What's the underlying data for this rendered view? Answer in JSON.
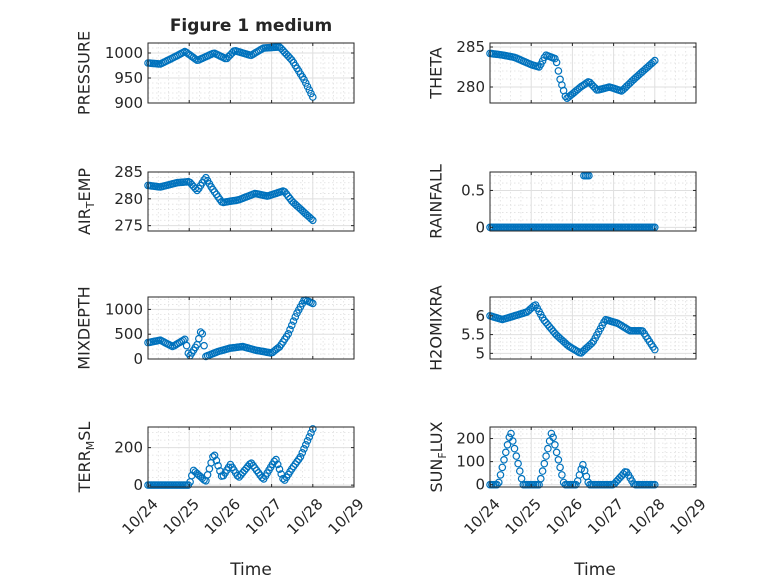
{
  "figure": {
    "title": "Figure 1 medium"
  },
  "style": {
    "marker_color": "#0072bd",
    "axis_color": "#262626",
    "grid_color": "#dfdfdf",
    "background": "#ffffff"
  },
  "chart_data": [
    {
      "type": "scatter",
      "ylabel": "PRESSURE",
      "ylim": [
        900,
        1020
      ],
      "yticks": [
        900,
        950,
        1000
      ],
      "ytick_labels": [
        "900",
        "950",
        "1000"
      ],
      "xticks": [
        "10/24",
        "10/25",
        "10/26",
        "10/27",
        "10/28",
        "10/29"
      ],
      "x_show_labels": false,
      "curve": [
        [
          0.0,
          980
        ],
        [
          0.3,
          978
        ],
        [
          0.5,
          986
        ],
        [
          0.9,
          1003
        ],
        [
          1.2,
          985
        ],
        [
          1.6,
          1000
        ],
        [
          1.9,
          988
        ],
        [
          2.1,
          1005
        ],
        [
          2.5,
          995
        ],
        [
          2.8,
          1010
        ],
        [
          3.2,
          1012
        ],
        [
          3.5,
          985
        ],
        [
          3.8,
          945
        ],
        [
          4.0,
          912
        ]
      ]
    },
    {
      "type": "scatter",
      "ylabel": "THETA",
      "ylim": [
        278,
        285.5
      ],
      "yticks": [
        280,
        285
      ],
      "ytick_labels": [
        "280",
        "285"
      ],
      "xticks": [
        "10/24",
        "10/25",
        "10/26",
        "10/27",
        "10/28",
        "10/29"
      ],
      "x_show_labels": false,
      "curve": [
        [
          0.0,
          284.2
        ],
        [
          0.3,
          284.0
        ],
        [
          0.6,
          283.7
        ],
        [
          1.0,
          282.8
        ],
        [
          1.2,
          282.5
        ],
        [
          1.35,
          284.0
        ],
        [
          1.6,
          283.5
        ],
        [
          1.7,
          281.0
        ],
        [
          1.85,
          278.5
        ],
        [
          2.2,
          280.0
        ],
        [
          2.4,
          280.7
        ],
        [
          2.6,
          279.6
        ],
        [
          2.9,
          280.0
        ],
        [
          3.2,
          279.5
        ],
        [
          3.5,
          281.0
        ],
        [
          4.0,
          283.3
        ]
      ]
    },
    {
      "type": "scatter",
      "ylabel": "AIR_TEMP",
      "ylim": [
        274,
        285
      ],
      "yticks": [
        275,
        280,
        285
      ],
      "ytick_labels": [
        "275",
        "280",
        "285"
      ],
      "xticks": [
        "10/24",
        "10/25",
        "10/26",
        "10/27",
        "10/28",
        "10/29"
      ],
      "x_show_labels": false,
      "curve": [
        [
          0.0,
          282.5
        ],
        [
          0.3,
          282.2
        ],
        [
          0.7,
          283.0
        ],
        [
          1.0,
          283.2
        ],
        [
          1.2,
          281.5
        ],
        [
          1.4,
          284.0
        ],
        [
          1.55,
          282.0
        ],
        [
          1.8,
          279.3
        ],
        [
          2.2,
          279.8
        ],
        [
          2.6,
          281.0
        ],
        [
          2.9,
          280.5
        ],
        [
          3.3,
          281.5
        ],
        [
          3.5,
          279.5
        ],
        [
          4.0,
          276.0
        ]
      ]
    },
    {
      "type": "scatter",
      "ylabel": "RAINFALL",
      "ylim": [
        -0.05,
        0.75
      ],
      "yticks": [
        0,
        0.5
      ],
      "ytick_labels": [
        "0",
        "0.5"
      ],
      "xticks": [
        "10/24",
        "10/25",
        "10/26",
        "10/27",
        "10/28",
        "10/29"
      ],
      "x_show_labels": false,
      "curve": [
        [
          0.0,
          0
        ],
        [
          4.0,
          0
        ]
      ],
      "extra_points": [
        [
          2.28,
          0.7
        ],
        [
          2.32,
          0.7
        ],
        [
          2.36,
          0.7
        ],
        [
          2.4,
          0.7
        ]
      ]
    },
    {
      "type": "scatter",
      "ylabel": "MIXDEPTH",
      "ylim": [
        0,
        1250
      ],
      "yticks": [
        0,
        500,
        1000
      ],
      "ytick_labels": [
        "0",
        "500",
        "1000"
      ],
      "xticks": [
        "10/24",
        "10/25",
        "10/26",
        "10/27",
        "10/28",
        "10/29"
      ],
      "x_show_labels": false,
      "curve": [
        [
          0.0,
          330
        ],
        [
          0.3,
          380
        ],
        [
          0.6,
          250
        ],
        [
          0.9,
          400
        ],
        [
          1.0,
          40
        ],
        [
          1.2,
          300
        ],
        [
          1.3,
          620
        ],
        [
          1.4,
          50
        ],
        [
          1.7,
          150
        ],
        [
          2.0,
          220
        ],
        [
          2.3,
          250
        ],
        [
          2.6,
          180
        ],
        [
          3.0,
          120
        ],
        [
          3.2,
          250
        ],
        [
          3.4,
          500
        ],
        [
          3.6,
          900
        ],
        [
          3.8,
          1200
        ],
        [
          4.0,
          1120
        ]
      ]
    },
    {
      "type": "scatter",
      "ylabel": "H2OMIXRA",
      "ylim": [
        4.85,
        6.5
      ],
      "yticks": [
        5,
        5.5,
        6
      ],
      "ytick_labels": [
        "5",
        "5.5",
        "6"
      ],
      "xticks": [
        "10/24",
        "10/25",
        "10/26",
        "10/27",
        "10/28",
        "10/29"
      ],
      "x_show_labels": false,
      "curve": [
        [
          0.0,
          6.0
        ],
        [
          0.3,
          5.9
        ],
        [
          0.6,
          6.0
        ],
        [
          0.9,
          6.1
        ],
        [
          1.1,
          6.3
        ],
        [
          1.3,
          5.9
        ],
        [
          1.6,
          5.5
        ],
        [
          1.9,
          5.2
        ],
        [
          2.2,
          5.0
        ],
        [
          2.5,
          5.3
        ],
        [
          2.8,
          5.9
        ],
        [
          3.1,
          5.8
        ],
        [
          3.4,
          5.6
        ],
        [
          3.7,
          5.6
        ],
        [
          4.0,
          5.1
        ]
      ]
    },
    {
      "type": "scatter",
      "ylabel": "TERR_MSL",
      "ylim": [
        -10,
        310
      ],
      "yticks": [
        0,
        200
      ],
      "ytick_labels": [
        "0",
        "200"
      ],
      "xticks": [
        "10/24",
        "10/25",
        "10/26",
        "10/27",
        "10/28",
        "10/29"
      ],
      "x_show_labels": true,
      "curve": [
        [
          0.0,
          0
        ],
        [
          0.5,
          0
        ],
        [
          1.0,
          0
        ],
        [
          1.1,
          80
        ],
        [
          1.4,
          20
        ],
        [
          1.6,
          170
        ],
        [
          1.8,
          40
        ],
        [
          2.0,
          110
        ],
        [
          2.2,
          40
        ],
        [
          2.5,
          120
        ],
        [
          2.8,
          30
        ],
        [
          3.1,
          140
        ],
        [
          3.3,
          20
        ],
        [
          3.5,
          90
        ],
        [
          3.7,
          150
        ],
        [
          4.0,
          300
        ]
      ]
    },
    {
      "type": "scatter",
      "ylabel": "SUN_FLUX",
      "ylim": [
        -10,
        250
      ],
      "yticks": [
        0,
        100,
        200
      ],
      "ytick_labels": [
        "0",
        "100",
        "200"
      ],
      "xticks": [
        "10/24",
        "10/25",
        "10/26",
        "10/27",
        "10/28",
        "10/29"
      ],
      "x_show_labels": true,
      "curve": [
        [
          0.0,
          0
        ],
        [
          0.2,
          0
        ],
        [
          0.5,
          230
        ],
        [
          0.8,
          0
        ],
        [
          1.2,
          0
        ],
        [
          1.5,
          230
        ],
        [
          1.8,
          0
        ],
        [
          2.1,
          0
        ],
        [
          2.25,
          90
        ],
        [
          2.4,
          0
        ],
        [
          3.0,
          0
        ],
        [
          3.3,
          60
        ],
        [
          3.5,
          0
        ],
        [
          4.0,
          0
        ]
      ]
    }
  ],
  "xlabels": [
    "Time",
    "Time"
  ]
}
